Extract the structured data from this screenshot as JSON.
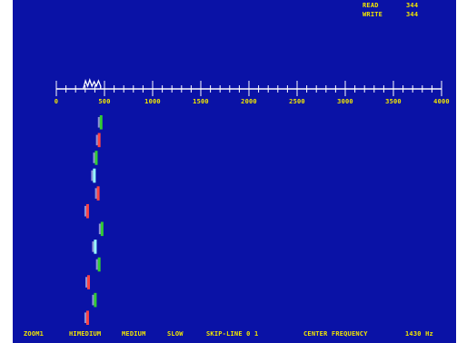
{
  "stats": [
    {
      "label": "READ",
      "value": "344"
    },
    {
      "label": "WRITE",
      "value": "344"
    }
  ],
  "axis": {
    "min": 0,
    "max": 4000,
    "major_step": 500,
    "minor_step": 100,
    "tick_labels": [
      "0",
      "500",
      "1000",
      "1500",
      "2000",
      "2500",
      "3000",
      "3500",
      "4000"
    ]
  },
  "spectrum_peak_hz": [
    280,
    460
  ],
  "waterfall_traces": [
    {
      "hz": 460,
      "color": "#33cc33"
    },
    {
      "hz": 440,
      "color": "#ff4444"
    },
    {
      "hz": 410,
      "color": "#33cc33"
    },
    {
      "hz": 390,
      "color": "#99ffff"
    },
    {
      "hz": 430,
      "color": "#ff4444"
    },
    {
      "hz": 320,
      "color": "#ff4444"
    },
    {
      "hz": 470,
      "color": "#33cc33"
    },
    {
      "hz": 400,
      "color": "#99ffff"
    },
    {
      "hz": 440,
      "color": "#33cc33"
    },
    {
      "hz": 330,
      "color": "#ff4444"
    },
    {
      "hz": 400,
      "color": "#33cc33"
    },
    {
      "hz": 320,
      "color": "#ff4444"
    }
  ],
  "colors": {
    "background": "#0a12a6",
    "text": "#f2e600",
    "axis": "#ffffff"
  },
  "status_bar": [
    "ZOOM1",
    "HIMEDIUM",
    "MEDIUM",
    "SLOW",
    "SKIP-LINE 0 1",
    "CENTER FREQUENCY",
    "1430 Hz"
  ]
}
